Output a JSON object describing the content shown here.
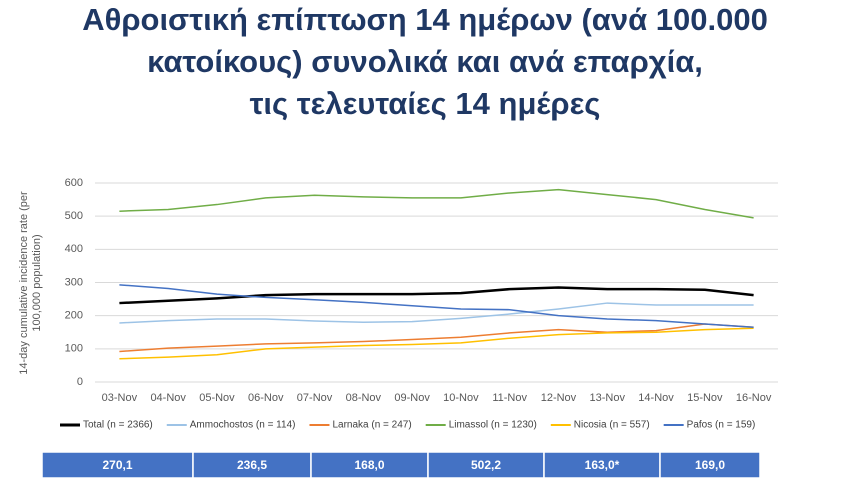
{
  "chart_data": {
    "type": "line",
    "title_lines": [
      "Αθροιστική επίπτωση 14 ημέρων (ανά 100.000",
      "κατοίκους) συνολικά και ανά επαρχία,",
      "τις τελευταίες 14 ημέρες"
    ],
    "ylabel_lines": [
      "14-day cumulative incidence rate (per",
      "100,000 population)"
    ],
    "categories": [
      "03-Nov",
      "04-Nov",
      "05-Nov",
      "06-Nov",
      "07-Nov",
      "08-Nov",
      "09-Nov",
      "10-Nov",
      "11-Nov",
      "12-Nov",
      "13-Nov",
      "14-Nov",
      "15-Nov",
      "16-Nov"
    ],
    "ylim": [
      0,
      600
    ],
    "yticks": [
      0,
      100,
      200,
      300,
      400,
      500,
      600
    ],
    "grid": true,
    "series": [
      {
        "name": "Total (n = 2366)",
        "color": "#000000",
        "values": [
          238,
          245,
          252,
          262,
          265,
          265,
          265,
          268,
          280,
          285,
          280,
          280,
          278,
          262
        ]
      },
      {
        "name": "Ammochostos (n = 114)",
        "color": "#9dc3e6",
        "values": [
          178,
          185,
          190,
          190,
          184,
          180,
          182,
          192,
          205,
          220,
          238,
          232,
          232,
          232
        ]
      },
      {
        "name": "Larnaka (n = 247)",
        "color": "#ed7d31",
        "values": [
          92,
          102,
          108,
          115,
          118,
          122,
          128,
          135,
          148,
          158,
          150,
          155,
          175,
          165
        ]
      },
      {
        "name": "Limassol (n = 1230)",
        "color": "#70ad47",
        "values": [
          515,
          520,
          535,
          555,
          563,
          558,
          555,
          555,
          570,
          580,
          565,
          550,
          520,
          495
        ]
      },
      {
        "name": "Nicosia (n = 557)",
        "color": "#ffc000",
        "values": [
          70,
          75,
          82,
          100,
          105,
          110,
          113,
          118,
          132,
          143,
          148,
          150,
          158,
          162
        ]
      },
      {
        "name": "Pafos (n = 159)",
        "color": "#4472c4",
        "values": [
          293,
          282,
          265,
          255,
          248,
          240,
          230,
          220,
          218,
          200,
          190,
          185,
          175,
          165
        ]
      }
    ]
  },
  "summary_row": [
    "270,1",
    "236,5",
    "168,0",
    "502,2",
    "163,0*",
    "169,0"
  ]
}
